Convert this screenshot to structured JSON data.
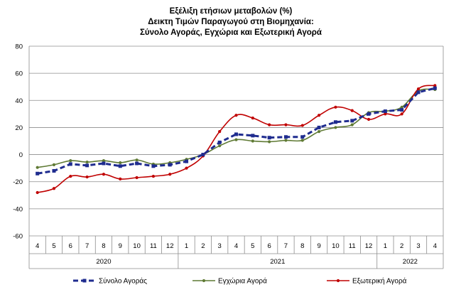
{
  "chart_data": {
    "type": "line",
    "title": [
      "Εξέλιξη ετήσιων μεταβολών (%)",
      "Δεικτη Τιμών Παραγωγού στη Βιομηχανία:",
      "Σύνολο Αγοράς, Εγχώρια και Εξωτερική Αγορά"
    ],
    "categories": [
      "4",
      "5",
      "6",
      "7",
      "8",
      "9",
      "10",
      "11",
      "12",
      "1",
      "2",
      "3",
      "4",
      "5",
      "6",
      "7",
      "8",
      "9",
      "10",
      "11",
      "12",
      "1",
      "2",
      "3",
      "4"
    ],
    "years": [
      {
        "label": "2020",
        "from": 0,
        "to": 8
      },
      {
        "label": "2021",
        "from": 9,
        "to": 20
      },
      {
        "label": "2022",
        "from": 21,
        "to": 24
      }
    ],
    "ylim": [
      -60,
      80
    ],
    "yticks": [
      -60,
      -40,
      -20,
      0,
      20,
      40,
      60,
      80
    ],
    "legend_position": "bottom",
    "series": [
      {
        "name": "Σύνολο Αγοράς",
        "color": "#1f2c8f",
        "style": "dashed",
        "values": [
          -14,
          -12,
          -7,
          -8,
          -6.5,
          -8.5,
          -6.5,
          -8.5,
          -7.5,
          -5,
          0,
          9,
          15,
          14,
          12.5,
          13,
          13,
          20,
          24,
          25,
          30,
          32,
          33,
          46,
          49
        ]
      },
      {
        "name": "Εγχώρια Αγορά",
        "color": "#5f7a34",
        "style": "solid",
        "values": [
          -9.5,
          -7.5,
          -4.5,
          -5.5,
          -4.5,
          -6,
          -4,
          -7,
          -6,
          -3.5,
          0,
          6.5,
          11,
          10,
          9.5,
          10.5,
          10.5,
          17,
          20,
          22,
          31,
          32,
          35,
          47,
          48
        ]
      },
      {
        "name": "Εξωτερική Αγορά",
        "color": "#c00000",
        "style": "solid",
        "values": [
          -28,
          -25,
          -16,
          -16.5,
          -14.5,
          -18,
          -17,
          -16,
          -14.5,
          -10,
          -1,
          17,
          29,
          27,
          22,
          22,
          21.5,
          29,
          35,
          32.5,
          26,
          30,
          30,
          48.5,
          51
        ]
      }
    ]
  }
}
